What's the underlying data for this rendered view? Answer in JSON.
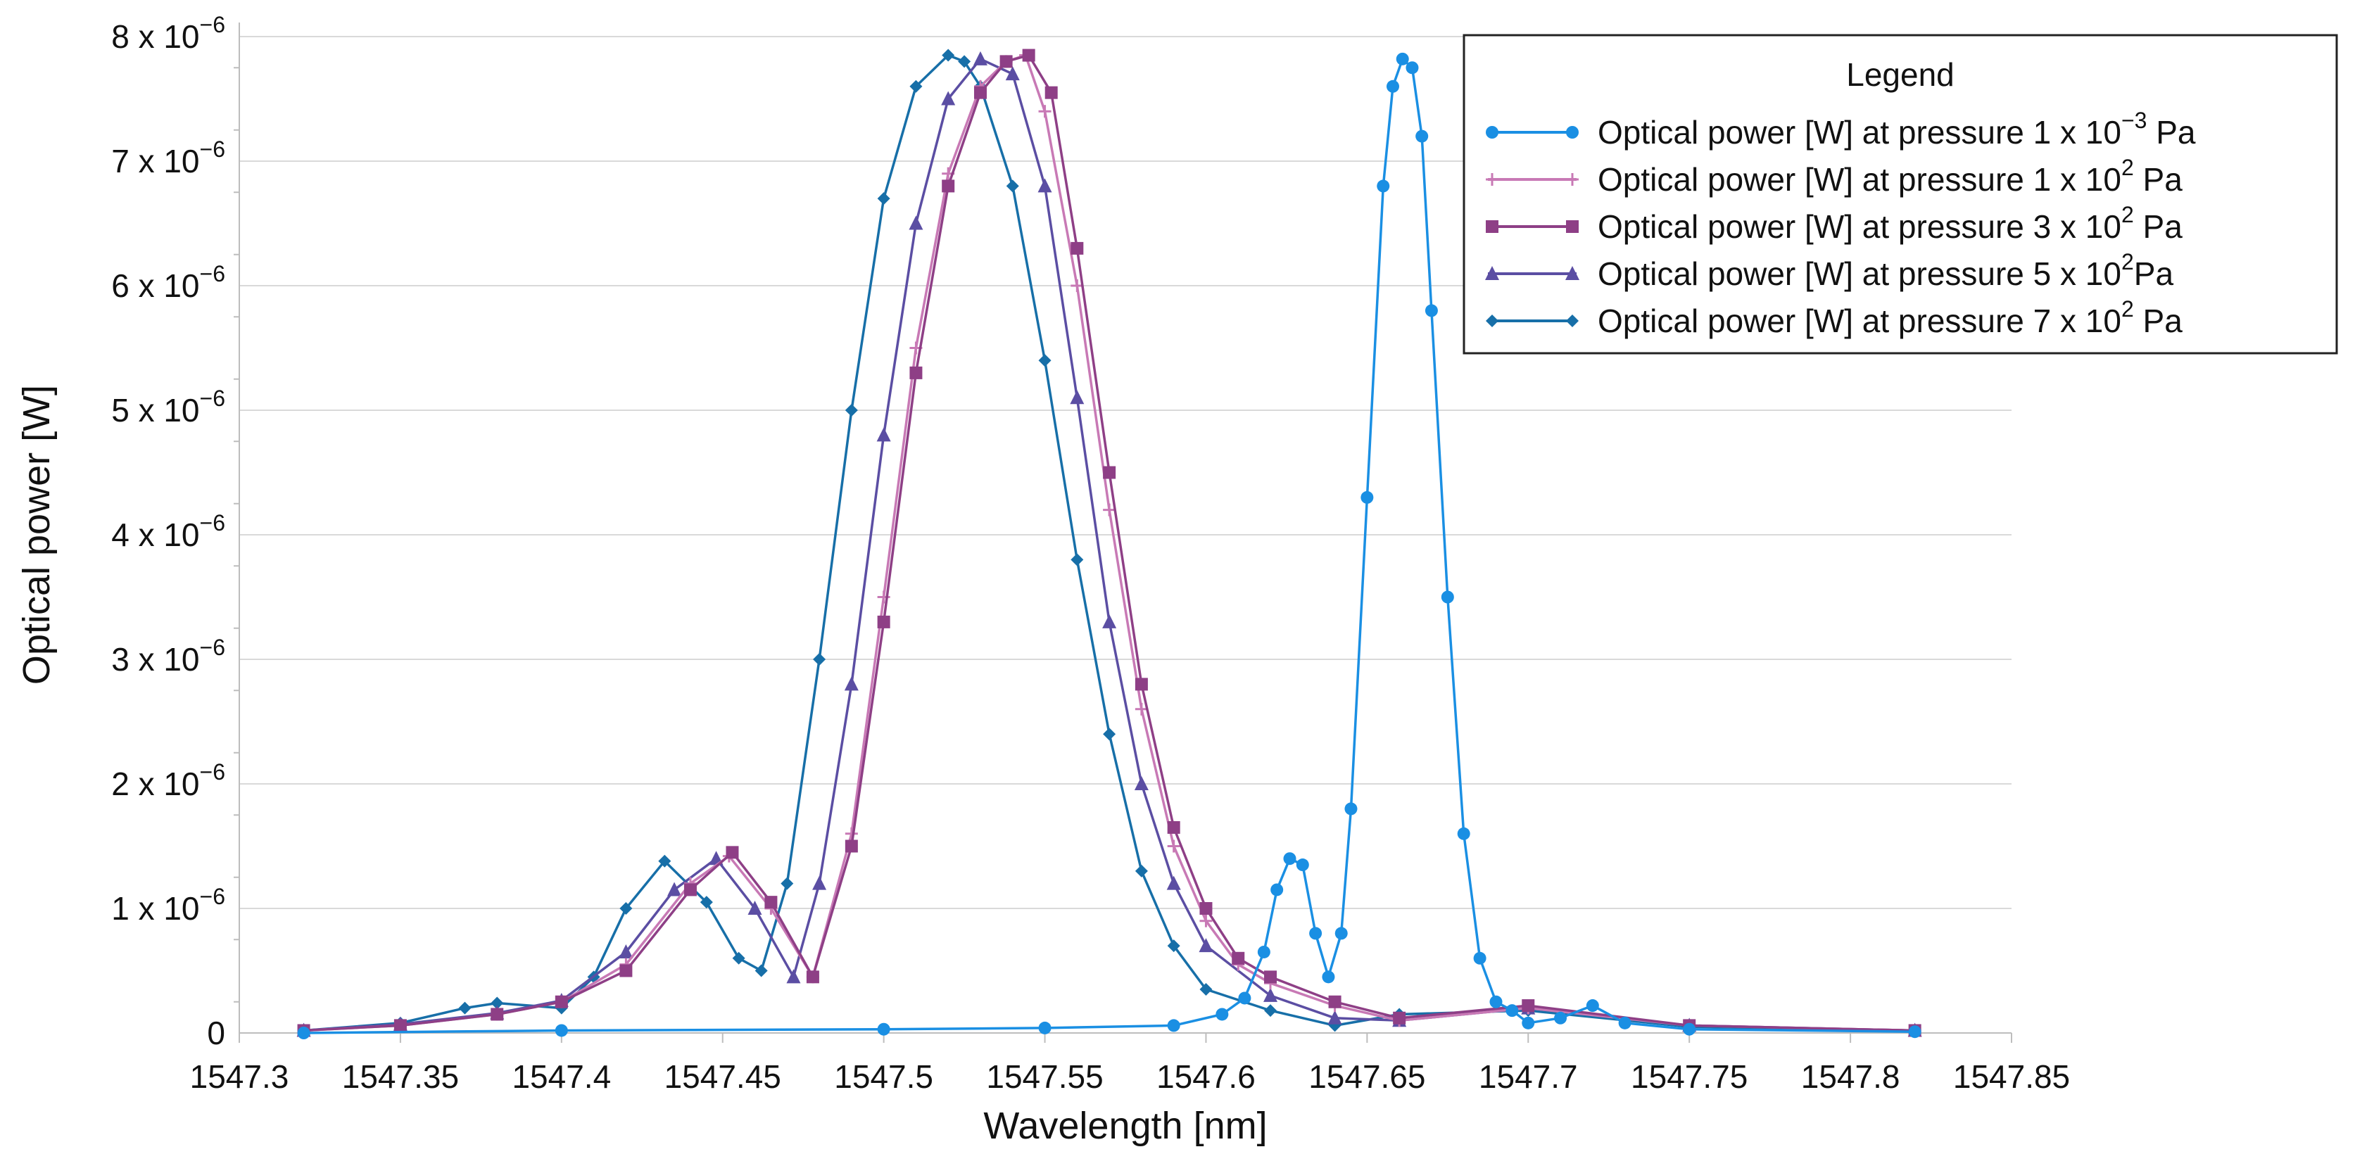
{
  "chart_data": {
    "type": "line",
    "title": "",
    "xlabel": "Wavelength [nm]",
    "ylabel": "Optical power [W]",
    "xlim": [
      1547.3,
      1547.85
    ],
    "ylim": [
      0,
      8e-06
    ],
    "x_ticks": [
      "1547.3",
      "1547.35",
      "1547.4",
      "1547.45",
      "1547.5",
      "1547.55",
      "1547.6",
      "1547.65",
      "1547.7",
      "1547.75",
      "1547.8",
      "1547.85"
    ],
    "y_ticks": [
      {
        "value": 0,
        "mantissa": "0",
        "exponent": ""
      },
      {
        "value": 1e-06,
        "mantissa": "1 x 10",
        "exponent": "−6"
      },
      {
        "value": 2e-06,
        "mantissa": "2 x 10",
        "exponent": "−6"
      },
      {
        "value": 3e-06,
        "mantissa": "3 x 10",
        "exponent": "−6"
      },
      {
        "value": 4e-06,
        "mantissa": "4 x 10",
        "exponent": "−6"
      },
      {
        "value": 5e-06,
        "mantissa": "5 x 10",
        "exponent": "−6"
      },
      {
        "value": 6e-06,
        "mantissa": "6 x 10",
        "exponent": "−6"
      },
      {
        "value": 7e-06,
        "mantissa": "7 x 10",
        "exponent": "−6"
      },
      {
        "value": 8e-06,
        "mantissa": "8 x 10",
        "exponent": "−6"
      }
    ],
    "grid": "horizontal",
    "legend_position": "top-right",
    "legend": {
      "title": "Legend",
      "entries": [
        {
          "prefix": "Optical power [W] at pressure 1 x 10",
          "exponent": "−3",
          "suffix": " Pa"
        },
        {
          "prefix": "Optical power [W] at pressure 1 x 10",
          "exponent": "2",
          "suffix": " Pa"
        },
        {
          "prefix": "Optical power [W] at pressure 3 x 10",
          "exponent": "2",
          "suffix": " Pa"
        },
        {
          "prefix": "Optical power [W] at pressure 5 x 10",
          "exponent": "2",
          "suffix": "Pa"
        },
        {
          "prefix": "Optical power [W] at pressure 7 x 10",
          "exponent": "2",
          "suffix": " Pa"
        }
      ]
    },
    "series": [
      {
        "name": "Optical power [W] at pressure 1 x 10−3 Pa",
        "color": "#1a8fe3",
        "marker": "circle",
        "x": [
          1547.32,
          1547.4,
          1547.5,
          1547.55,
          1547.59,
          1547.605,
          1547.612,
          1547.618,
          1547.622,
          1547.626,
          1547.63,
          1547.634,
          1547.638,
          1547.642,
          1547.645,
          1547.65,
          1547.655,
          1547.658,
          1547.661,
          1547.664,
          1547.667,
          1547.67,
          1547.675,
          1547.68,
          1547.685,
          1547.69,
          1547.695,
          1547.7,
          1547.71,
          1547.72,
          1547.73,
          1547.75,
          1547.82
        ],
        "y": [
          0.0,
          2e-08,
          3e-08,
          4e-08,
          6e-08,
          1.5e-07,
          2.8e-07,
          6.5e-07,
          1.15e-06,
          1.4e-06,
          1.35e-06,
          8e-07,
          4.5e-07,
          8e-07,
          1.8e-06,
          4.3e-06,
          6.8e-06,
          7.6e-06,
          7.82e-06,
          7.75e-06,
          7.2e-06,
          5.8e-06,
          3.5e-06,
          1.6e-06,
          6e-07,
          2.5e-07,
          1.8e-07,
          8e-08,
          1.2e-07,
          2.2e-07,
          8e-08,
          3e-08,
          1e-08
        ]
      },
      {
        "name": "Optical power [W] at pressure 1 x 102 Pa",
        "color": "#c879b5",
        "marker": "plus",
        "x": [
          1547.32,
          1547.35,
          1547.38,
          1547.4,
          1547.42,
          1547.44,
          1547.452,
          1547.465,
          1547.478,
          1547.49,
          1547.5,
          1547.51,
          1547.52,
          1547.53,
          1547.538,
          1547.544,
          1547.55,
          1547.56,
          1547.57,
          1547.58,
          1547.59,
          1547.6,
          1547.61,
          1547.62,
          1547.64,
          1547.66,
          1547.7,
          1547.75,
          1547.82
        ],
        "y": [
          2e-08,
          6e-08,
          1.5e-07,
          2.5e-07,
          5.5e-07,
          1.2e-06,
          1.42e-06,
          1e-06,
          4.5e-07,
          1.6e-06,
          3.5e-06,
          5.5e-06,
          6.9e-06,
          7.6e-06,
          7.8e-06,
          7.85e-06,
          7.4e-06,
          6e-06,
          4.2e-06,
          2.6e-06,
          1.5e-06,
          9e-07,
          5.5e-07,
          4e-07,
          2.2e-07,
          1e-07,
          2e-07,
          6e-08,
          2e-08
        ]
      },
      {
        "name": "Optical power [W] at pressure 3 x 102 Pa",
        "color": "#8e3f86",
        "marker": "square",
        "x": [
          1547.32,
          1547.35,
          1547.38,
          1547.4,
          1547.42,
          1547.44,
          1547.453,
          1547.465,
          1547.478,
          1547.49,
          1547.5,
          1547.51,
          1547.52,
          1547.53,
          1547.538,
          1547.545,
          1547.552,
          1547.56,
          1547.57,
          1547.58,
          1547.59,
          1547.6,
          1547.61,
          1547.62,
          1547.64,
          1547.66,
          1547.7,
          1547.75,
          1547.82
        ],
        "y": [
          2e-08,
          6e-08,
          1.5e-07,
          2.5e-07,
          5e-07,
          1.15e-06,
          1.45e-06,
          1.05e-06,
          4.5e-07,
          1.5e-06,
          3.3e-06,
          5.3e-06,
          6.8e-06,
          7.55e-06,
          7.8e-06,
          7.85e-06,
          7.55e-06,
          6.3e-06,
          4.5e-06,
          2.8e-06,
          1.65e-06,
          1e-06,
          6e-07,
          4.5e-07,
          2.5e-07,
          1.2e-07,
          2.2e-07,
          6e-08,
          2e-08
        ]
      },
      {
        "name": "Optical power [W] at pressure 5 x 102Pa",
        "color": "#5b4ea3",
        "marker": "triangle",
        "x": [
          1547.32,
          1547.35,
          1547.38,
          1547.4,
          1547.42,
          1547.435,
          1547.448,
          1547.46,
          1547.472,
          1547.48,
          1547.49,
          1547.5,
          1547.51,
          1547.52,
          1547.53,
          1547.54,
          1547.55,
          1547.56,
          1547.57,
          1547.58,
          1547.59,
          1547.6,
          1547.62,
          1547.64,
          1547.66,
          1547.7,
          1547.75,
          1547.82
        ],
        "y": [
          2e-08,
          7e-08,
          1.6e-07,
          2.6e-07,
          6.5e-07,
          1.15e-06,
          1.4e-06,
          1e-06,
          4.5e-07,
          1.2e-06,
          2.8e-06,
          4.8e-06,
          6.5e-06,
          7.5e-06,
          7.82e-06,
          7.7e-06,
          6.8e-06,
          5.1e-06,
          3.3e-06,
          2e-06,
          1.2e-06,
          7e-07,
          3e-07,
          1.2e-07,
          1e-07,
          2e-07,
          6e-08,
          2e-08
        ]
      },
      {
        "name": "Optical power [W] at pressure 7 x 102 Pa",
        "color": "#176fa8",
        "marker": "diamond",
        "x": [
          1547.32,
          1547.35,
          1547.37,
          1547.38,
          1547.4,
          1547.41,
          1547.42,
          1547.432,
          1547.445,
          1547.455,
          1547.462,
          1547.47,
          1547.48,
          1547.49,
          1547.5,
          1547.51,
          1547.52,
          1547.525,
          1547.53,
          1547.54,
          1547.55,
          1547.56,
          1547.57,
          1547.58,
          1547.59,
          1547.6,
          1547.62,
          1547.64,
          1547.66,
          1547.7,
          1547.75,
          1547.82
        ],
        "y": [
          2e-08,
          8e-08,
          2e-07,
          2.4e-07,
          2e-07,
          4.5e-07,
          1e-06,
          1.38e-06,
          1.05e-06,
          6e-07,
          5e-07,
          1.2e-06,
          3e-06,
          5e-06,
          6.7e-06,
          7.6e-06,
          7.85e-06,
          7.8e-06,
          7.6e-06,
          6.8e-06,
          5.4e-06,
          3.8e-06,
          2.4e-06,
          1.3e-06,
          7e-07,
          3.5e-07,
          1.8e-07,
          6e-08,
          1.5e-07,
          1.8e-07,
          5e-08,
          2e-08
        ]
      }
    ]
  }
}
